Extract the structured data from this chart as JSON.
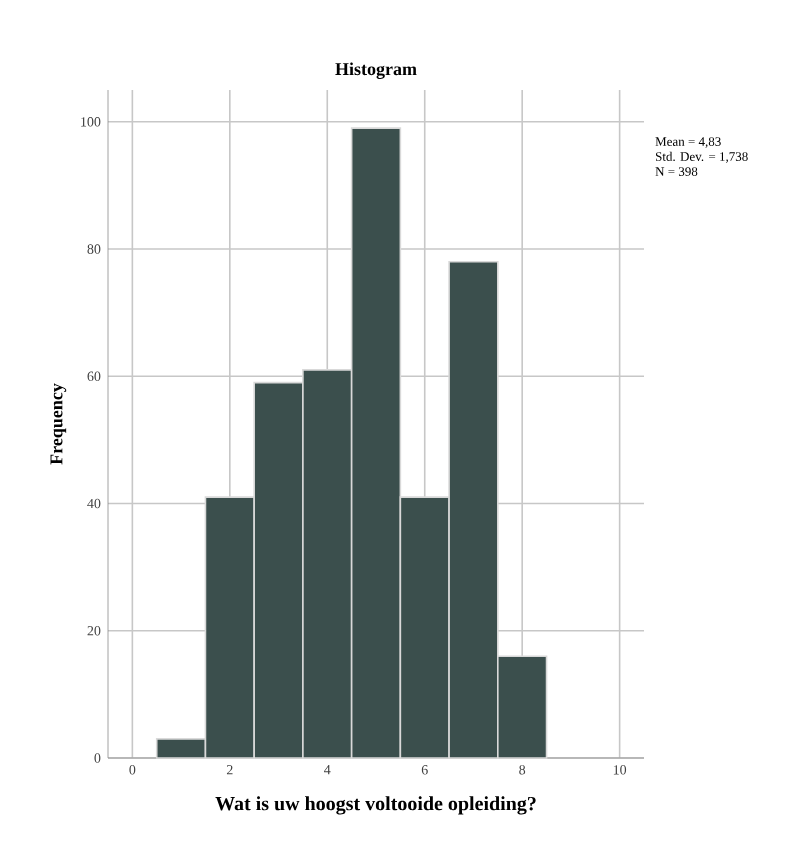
{
  "chart_data": {
    "type": "histogram",
    "title": "Histogram",
    "xlabel": "Wat is uw hoogst voltooide opleiding?",
    "ylabel": "Frequency",
    "bins": [
      0.5,
      1.5,
      2.5,
      3.5,
      4.5,
      5.5,
      6.5,
      7.5,
      8.5
    ],
    "values": [
      3,
      41,
      59,
      61,
      99,
      41,
      78,
      16
    ],
    "color": "#3b4f4d",
    "xlim": [
      -0.5,
      10.5
    ],
    "ylim": [
      0,
      105
    ],
    "xticks": [
      0,
      2,
      4,
      6,
      8,
      10
    ],
    "yticks": [
      0,
      20,
      40,
      60,
      80,
      100
    ],
    "grid": true,
    "annotations": [
      "Mean = 4,83",
      "Std. Dev. = 1,738",
      "N = 398"
    ]
  }
}
